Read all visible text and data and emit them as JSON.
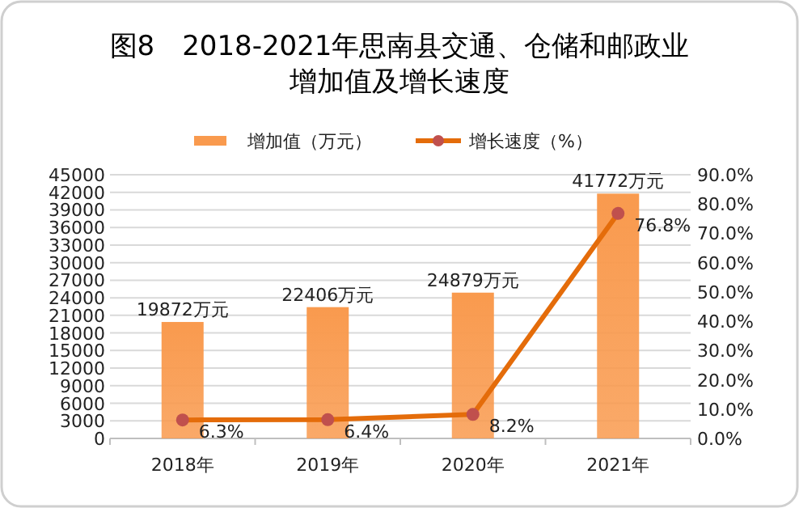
{
  "chart_data": {
    "type": "bar",
    "title": "图8　2018-2021年思南县交通、仓储和邮政业增加值及增长速度",
    "categories": [
      "2018年",
      "2019年",
      "2020年",
      "2021年"
    ],
    "series": [
      {
        "name": "增加值（万元）",
        "color": "#f99a4e",
        "values": [
          19872,
          22406,
          24879,
          41772
        ],
        "value_labels": [
          "19872万元",
          "22406万元",
          "24879万元",
          "41772万元"
        ]
      },
      {
        "name": "增长速度（%）",
        "type": "line",
        "axis": "y2",
        "color": "#e46c0a",
        "marker": "circle",
        "values": [
          6.3,
          6.4,
          8.2,
          76.8
        ],
        "value_labels": [
          "6.3%",
          "6.4%",
          "8.2%",
          "76.8%"
        ]
      }
    ],
    "ylim": [
      0,
      45000
    ],
    "yticks": [
      0,
      3000,
      6000,
      9000,
      12000,
      15000,
      18000,
      21000,
      24000,
      27000,
      30000,
      33000,
      36000,
      39000,
      42000,
      45000
    ],
    "y2lim": [
      0,
      90
    ],
    "y2ticks": [
      {
        "value": 0,
        "label": "0.0%"
      },
      {
        "value": 10,
        "label": "10.0%"
      },
      {
        "value": 20,
        "label": "20.0%"
      },
      {
        "value": 30,
        "label": "30.0%"
      },
      {
        "value": 40,
        "label": "40.0%"
      },
      {
        "value": 50,
        "label": "50.0%"
      },
      {
        "value": 60,
        "label": "60.0%"
      },
      {
        "value": 70,
        "label": "70.0%"
      },
      {
        "value": 80,
        "label": "80.0%"
      },
      {
        "value": 90,
        "label": "90.0%"
      }
    ],
    "grid": "y",
    "legend": "top"
  }
}
